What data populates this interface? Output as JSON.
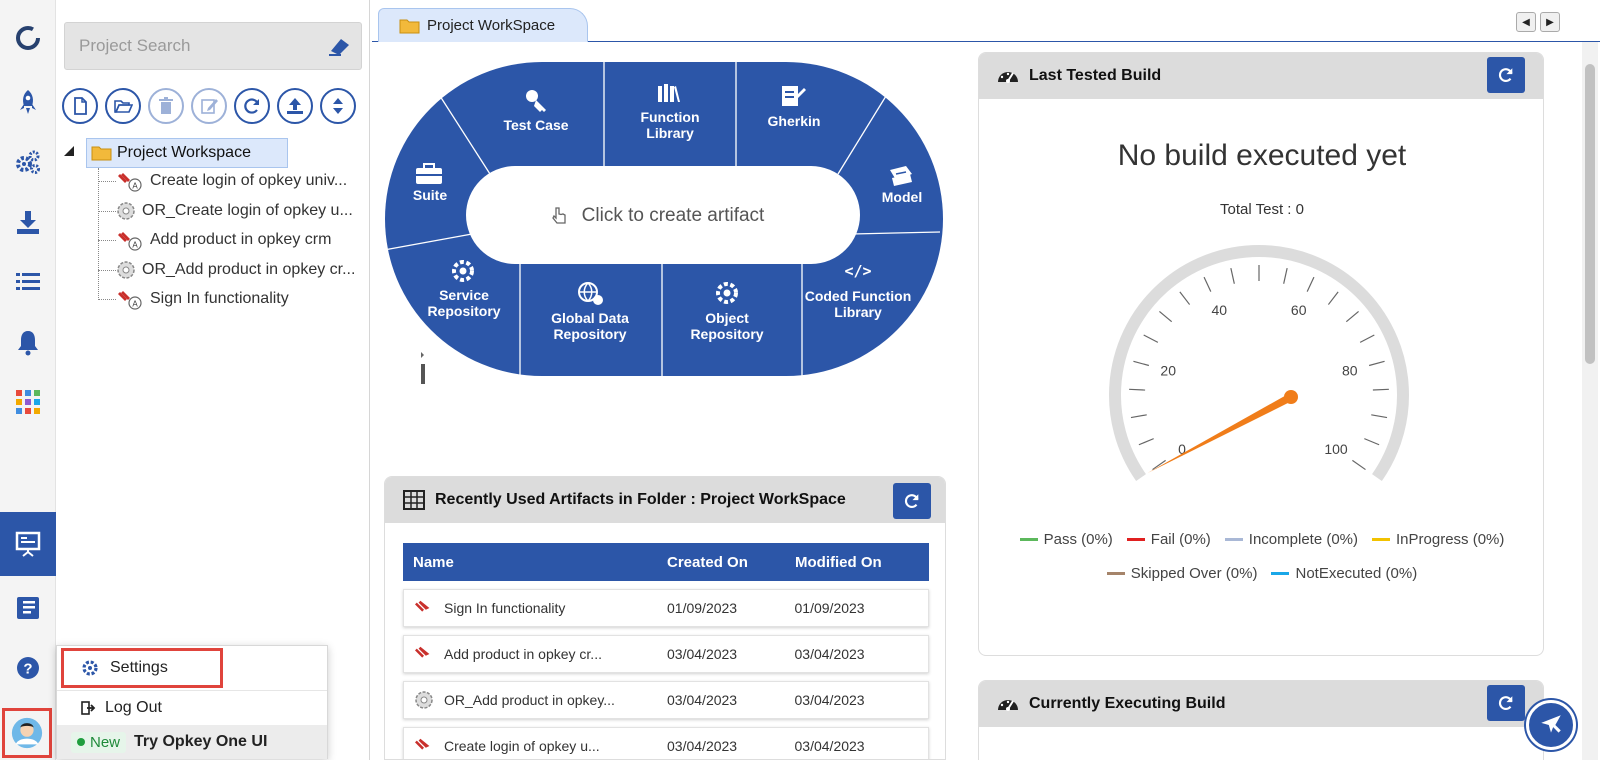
{
  "colors": {
    "accent": "#2c56a8",
    "highlight": "#e0443c",
    "tree_selected": "#dce8fb"
  },
  "rail": {
    "icons": [
      "logo-icon",
      "rocket-icon",
      "gears-icon",
      "download-icon",
      "list-icon",
      "bell-icon",
      "apps-grid-icon",
      "presentation-icon",
      "book-icon",
      "help-icon",
      "user-avatar-icon"
    ]
  },
  "search": {
    "placeholder": "Project Search"
  },
  "toolbar": {
    "icons": [
      "new-file-icon",
      "open-folder-icon",
      "delete-icon",
      "edit-icon",
      "refresh-icon",
      "upload-icon",
      "expand-collapse-icon"
    ]
  },
  "tree": {
    "root": "Project Workspace",
    "items": [
      {
        "label": "Create login of opkey univ...",
        "icon": "testcase-icon"
      },
      {
        "label": "OR_Create login of opkey u...",
        "icon": "object-repository-icon"
      },
      {
        "label": "Add product in opkey crm",
        "icon": "testcase-icon"
      },
      {
        "label": "OR_Add product in opkey cr...",
        "icon": "object-repository-icon"
      },
      {
        "label": "Sign In functionality",
        "icon": "testcase-icon"
      }
    ]
  },
  "tabs": {
    "workspace": "Project WorkSpace"
  },
  "wheel": {
    "center": "Click to create artifact",
    "segments": {
      "test_case": "Test Case",
      "function_library_1": "Function",
      "function_library_2": "Library",
      "gherkin": "Gherkin",
      "suite": "Suite",
      "model": "Model",
      "service_1": "Service",
      "service_2": "Repository",
      "gdr_1": "Global Data",
      "gdr_2": "Repository",
      "or_1": "Object",
      "or_2": "Repository",
      "cfl_1": "Coded Function",
      "cfl_2": "Library"
    }
  },
  "recent": {
    "title": "Recently Used Artifacts in Folder : Project WorkSpace",
    "columns": {
      "name": "Name",
      "created": "Created On",
      "modified": "Modified On"
    },
    "rows": [
      {
        "name": "Sign In functionality",
        "created": "01/09/2023",
        "modified": "01/09/2023",
        "icon": "testcase-icon"
      },
      {
        "name": "Add product in opkey cr...",
        "created": "03/04/2023",
        "modified": "03/04/2023",
        "icon": "testcase-icon"
      },
      {
        "name": "OR_Add product in opkey...",
        "created": "03/04/2023",
        "modified": "03/04/2023",
        "icon": "object-repository-icon"
      },
      {
        "name": "Create login of opkey u...",
        "created": "03/04/2023",
        "modified": "03/04/2023",
        "icon": "testcase-icon"
      }
    ]
  },
  "last_build": {
    "title": "Last Tested Build",
    "message": "No build executed yet",
    "total": "Total Test : 0",
    "gauge_value": 0,
    "gauge_labels": [
      "0",
      "20",
      "40",
      "60",
      "80",
      "100"
    ],
    "legend": [
      {
        "label": "Pass (0%)",
        "color": "#5cb85c"
      },
      {
        "label": "Fail (0%)",
        "color": "#e02020"
      },
      {
        "label": "Incomplete (0%)",
        "color": "#a9b8d6"
      },
      {
        "label": "InProgress (0%)",
        "color": "#f2c200"
      },
      {
        "label": "Skipped Over (0%)",
        "color": "#a5846a"
      },
      {
        "label": "NotExecuted (0%)",
        "color": "#1aa7e8"
      }
    ]
  },
  "executing": {
    "title": "Currently Executing Build"
  },
  "user_menu": {
    "settings": "Settings",
    "logout": "Log Out",
    "badge": "New",
    "try": "Try Opkey One UI"
  }
}
